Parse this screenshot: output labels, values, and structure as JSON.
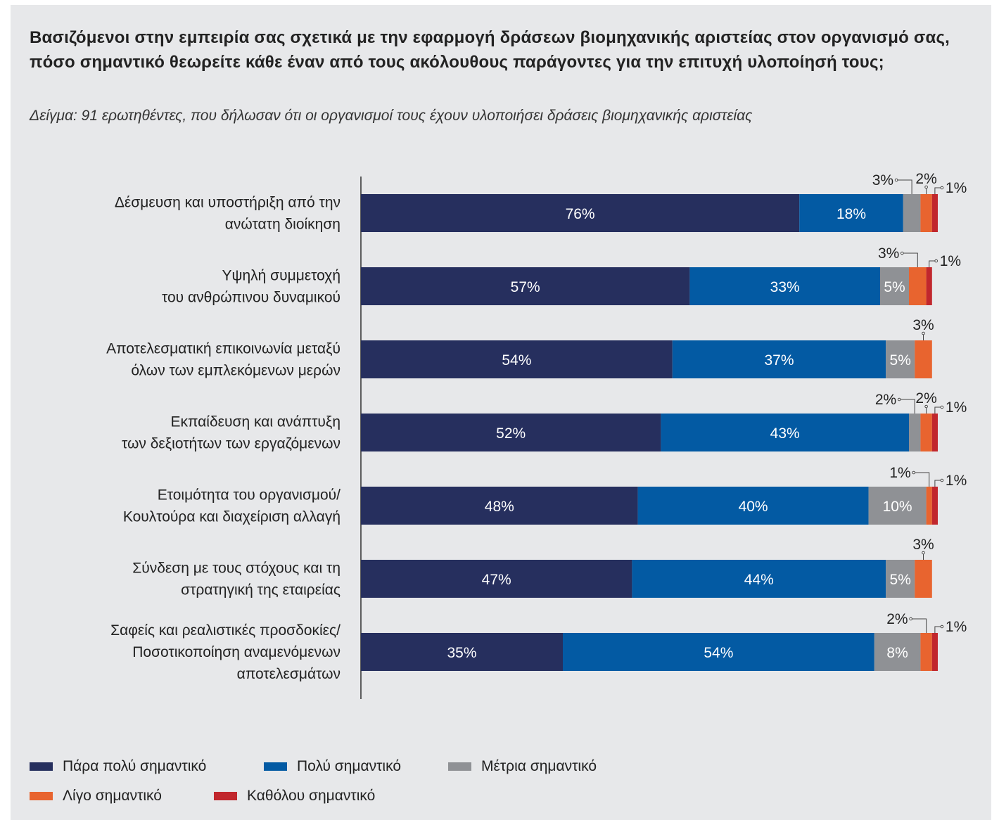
{
  "title": "Βασιζόμενοι στην εμπειρία σας σχετικά με την εφαρμογή δράσεων βιομηχανικής αριστείας στον οργανισμό σας, πόσο σημαντικό θεωρείτε κάθε έναν από τους ακόλουθους παράγοντες για την επιτυχή υλοποίησή τους;",
  "subtitle": "Δείγμα: 91 ερωτηθέντες, που δήλωσαν ότι οι οργανισμοί τους έχουν υλοποιήσει δράσεις βιομηχανικής αριστείας",
  "colors": {
    "background": "#e7e8ea",
    "very_important": "#262f5e",
    "important": "#035aa3",
    "moderate": "#8f9195",
    "slightly": "#e8642f",
    "not_at_all": "#c1272d"
  },
  "chart_data": {
    "type": "bar",
    "orientation": "horizontal",
    "stacked": true,
    "categories": [
      [
        "Δέσμευση και υποστήριξη από την",
        "ανώτατη διοίκηση"
      ],
      [
        "Υψηλή συμμετοχή",
        "του ανθρώπινου δυναμικού"
      ],
      [
        "Αποτελεσματική επικοινωνία μεταξύ",
        "όλων των εμπλεκόμενων μερών"
      ],
      [
        "Εκπαίδευση και ανάπτυξη",
        "των δεξιοτήτων των εργαζόμενων"
      ],
      [
        "Ετοιμότητα του οργανισμού/",
        "Κουλτούρα και διαχείριση αλλαγή"
      ],
      [
        "Σύνδεση με τους στόχους και τη",
        "στρατηγική της εταιρείας"
      ],
      [
        "Σαφείς και ρεαλιστικές προσδοκίες/",
        "Ποσοτικοποίηση αναμενόμενων",
        "αποτελεσμάτων"
      ]
    ],
    "series": [
      {
        "name": "Πάρα πολύ σημαντικό",
        "values": [
          76,
          57,
          54,
          52,
          48,
          47,
          35
        ]
      },
      {
        "name": "Πολύ σημαντικό",
        "values": [
          18,
          33,
          37,
          43,
          40,
          44,
          54
        ]
      },
      {
        "name": "Μέτρια σημαντικό",
        "values": [
          3,
          5,
          5,
          2,
          10,
          5,
          8
        ]
      },
      {
        "name": "Λίγο σημαντικό",
        "values": [
          2,
          3,
          3,
          2,
          1,
          3,
          2
        ]
      },
      {
        "name": "Καθόλου σημαντικό",
        "values": [
          1,
          1,
          0,
          1,
          1,
          0,
          1
        ]
      }
    ],
    "value_suffix": "%",
    "xlim": [
      0,
      100
    ],
    "callout_labels": [
      [
        "3%",
        "2%",
        "1%"
      ],
      [
        "3%",
        "1%"
      ],
      [
        "3%"
      ],
      [
        "2%",
        "2%",
        "1%"
      ],
      [
        "1%",
        "1%"
      ],
      [
        "3%"
      ],
      [
        "2%",
        "1%"
      ]
    ],
    "legend_position": "bottom-left"
  },
  "legend": [
    {
      "label": "Πάρα πολύ σημαντικό"
    },
    {
      "label": "Πολύ σημαντικό"
    },
    {
      "label": "Μέτρια σημαντικό"
    },
    {
      "label": "Λίγο σημαντικό"
    },
    {
      "label": "Καθόλου σημαντικό"
    }
  ]
}
